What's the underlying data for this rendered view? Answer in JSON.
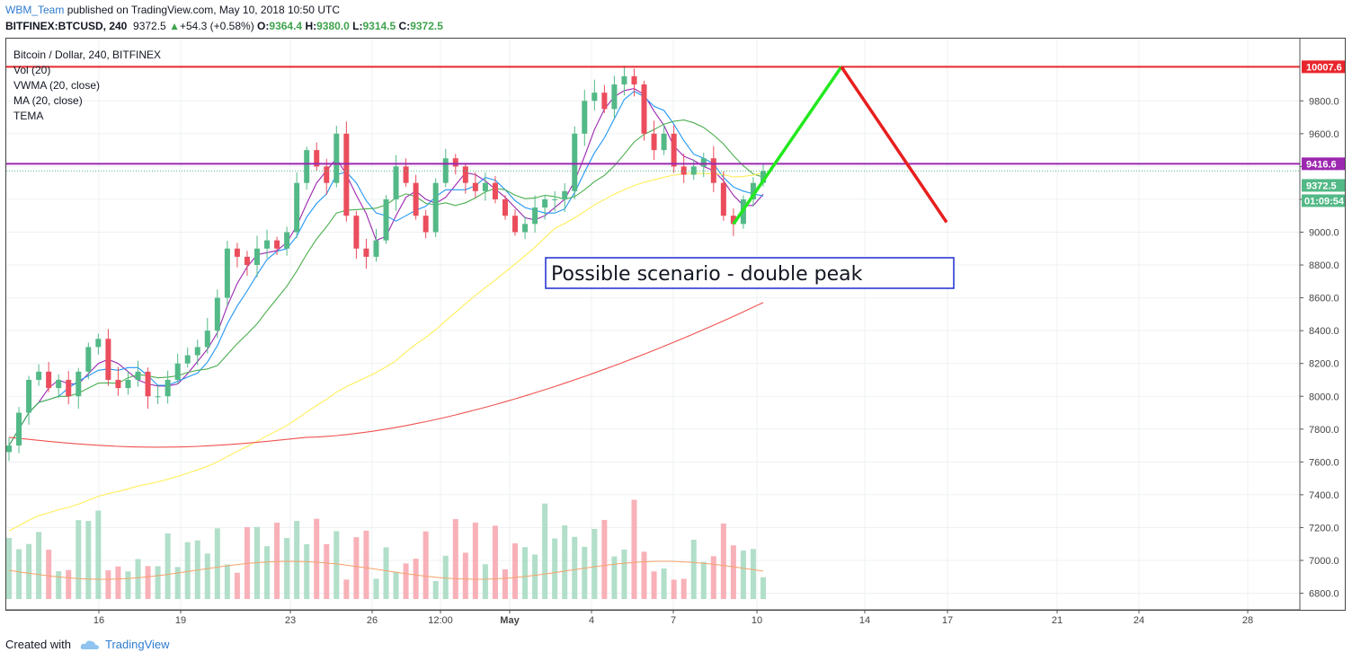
{
  "header": {
    "user": "WBM_Team",
    "published_text": "published on TradingView.com, May 10, 2018 10:50 UTC",
    "symbol_line": "BITFINEX:BTCUSD, 240",
    "last": "9372.5",
    "change": "+54.3 (+0.58%)",
    "open_label": "O:",
    "open": "9364.4",
    "high_label": "H:",
    "high": "9380.0",
    "low_label": "L:",
    "low": "9314.5",
    "close_label": "C:",
    "close": "9372.5"
  },
  "legend": {
    "title": "Bitcoin / Dollar, 240, BITFINEX",
    "items": [
      "Vol (20)",
      "VWMA (20, close)",
      "MA (20, close)",
      "TEMA"
    ]
  },
  "footer": {
    "created_with": "Created with",
    "brand": "TradingView"
  },
  "colors": {
    "up": "#53b987",
    "down": "#eb4d5c",
    "vol_up": "#a9dcc3",
    "vol_down": "#f7a9b0",
    "resistance": "#e8262b",
    "support": "#9c27b0",
    "scenario_up": "#22e81e",
    "scenario_down": "#e81e1e",
    "annotation_border": "#1e2bd1"
  },
  "chart_data": {
    "type": "candlestick",
    "symbol": "BITFINEX:BTCUSD",
    "timeframe": "240",
    "y_ticks": [
      6800,
      7000,
      7200,
      7400,
      7600,
      7800,
      8000,
      8200,
      8400,
      8600,
      8800,
      9000,
      9200,
      9400,
      9600,
      9800
    ],
    "y_tick_labels": [
      "6800.0",
      "7000.0",
      "7200.0",
      "7400.0",
      "7600.0",
      "7800.0",
      "8000.0",
      "8200.0",
      "8400.0",
      "8600.0",
      "8800.0",
      "9000.0",
      "9200.0",
      "9400.0",
      "9600.0",
      "9800.0"
    ],
    "x_tick_labels": [
      "16",
      "19",
      "23",
      "26",
      "12:00",
      "May",
      "4",
      "7",
      "10",
      "14",
      "17",
      "21",
      "24",
      "28"
    ],
    "x_tick_bold": [
      "May"
    ],
    "price_labels": {
      "resistance": {
        "value": 10007.6,
        "text": "10007.6"
      },
      "support": {
        "value": 9416.6,
        "text": "9416.6"
      },
      "last": {
        "value": 9372.5,
        "text": "9372.5"
      },
      "countdown": "01:09:54"
    },
    "resistance_level": 10007.6,
    "support_level": 9416.6,
    "last_price": 9372.5,
    "annotation": "Possible scenario - double peak",
    "scenario_path": [
      {
        "x": "May 9",
        "y": 9050
      },
      {
        "x": "May 12",
        "y": 10007.6
      },
      {
        "x": "May 17",
        "y": 9060
      }
    ],
    "price_series": [
      7700,
      7900,
      8100,
      8150,
      8050,
      8100,
      8000,
      8150,
      8300,
      8350,
      8100,
      8050,
      8100,
      8150,
      8000,
      8000,
      8100,
      8200,
      8250,
      8300,
      8400,
      8600,
      8900,
      8850,
      8800,
      8900,
      8950,
      8900,
      9000,
      9300,
      9500,
      9400,
      9300,
      9600,
      9100,
      8900,
      8850,
      8950,
      9200,
      9400,
      9300,
      9100,
      9000,
      9300,
      9450,
      9400,
      9300,
      9250,
      9300,
      9200,
      9100,
      9000,
      9050,
      9150,
      9200,
      9200,
      9250,
      9600,
      9800,
      9850,
      9750,
      9900,
      9950,
      9900,
      9600,
      9500,
      9600,
      9400,
      9350,
      9400,
      9450,
      9300,
      9100,
      9050,
      9200,
      9300,
      9372.5
    ],
    "ma_series": [
      {
        "name": "VWMA (20, close)",
        "color": "#9c27b0"
      },
      {
        "name": "MA (20, close)",
        "color": "#2196f3"
      },
      {
        "name": "TEMA",
        "color": "#4caf50"
      },
      {
        "name": "",
        "color": "#ffee58"
      },
      {
        "name": "",
        "color": "#ef5350"
      }
    ]
  }
}
